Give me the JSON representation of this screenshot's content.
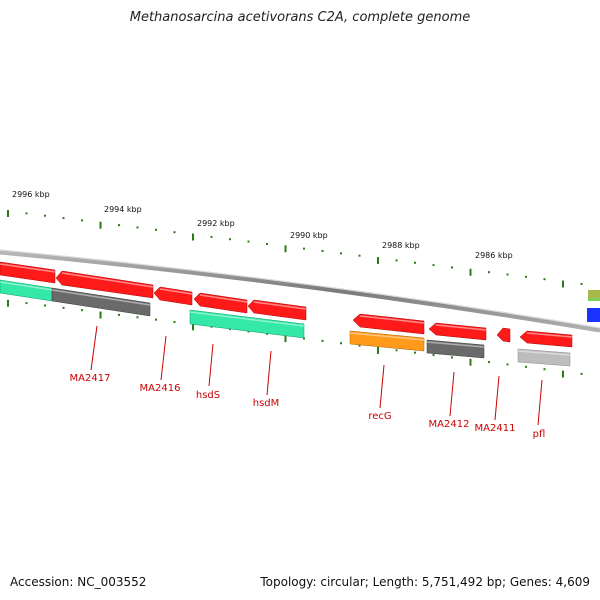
{
  "title": "Methanosarcina acetivorans C2A, complete genome",
  "footer": {
    "accession": "Accession: NC_003552",
    "summary": "Topology: circular; Length: 5,751,492 bp; Genes: 4,609"
  },
  "ruler_labels": [
    "2996 kbp",
    "2994 kbp",
    "2992 kbp",
    "2990 kbp",
    "2988 kbp",
    "2986 kbp"
  ],
  "gene_labels": [
    "MA2417",
    "MA2416",
    "hsdS",
    "hsdM",
    "recG",
    "MA2412",
    "MA2411",
    "pfl"
  ],
  "colors": {
    "backbone": "#8a8a8a",
    "cds": "#ff1a1a",
    "rna_teal": "#33e8a8",
    "gray": "#6a6a6a",
    "light_gray": "#bdbdbd",
    "orange": "#ff9a1a",
    "blue": "#1a33ff",
    "olive": "#a8b84a",
    "tick": "#2d7a1a",
    "label": "#cc0000"
  }
}
